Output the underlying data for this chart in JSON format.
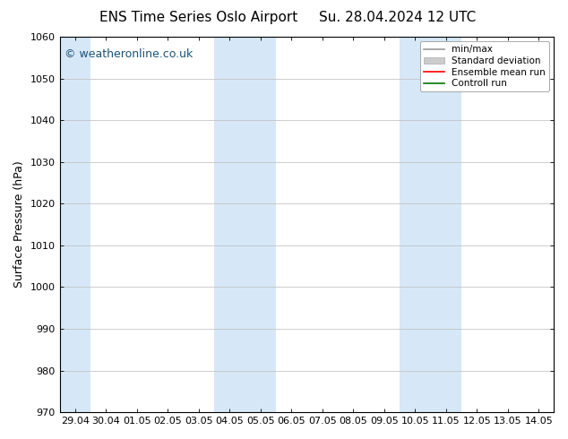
{
  "title_left": "ENS Time Series Oslo Airport",
  "title_right": "Su. 28.04.2024 12 UTC",
  "ylabel": "Surface Pressure (hPa)",
  "ylim": [
    970,
    1060
  ],
  "yticks": [
    970,
    980,
    990,
    1000,
    1010,
    1020,
    1030,
    1040,
    1050,
    1060
  ],
  "x_labels": [
    "29.04",
    "30.04",
    "01.05",
    "02.05",
    "03.05",
    "04.05",
    "05.05",
    "06.05",
    "07.05",
    "08.05",
    "09.05",
    "10.05",
    "11.05",
    "12.05",
    "13.05",
    "14.05"
  ],
  "num_cols": 15,
  "shaded_col_indices": [
    0,
    5,
    6,
    11,
    12
  ],
  "shade_color": "#d6e8f7",
  "background_color": "#ffffff",
  "watermark_text": "© weatheronline.co.uk",
  "watermark_color": "#1a5276",
  "legend_items": [
    {
      "label": "min/max",
      "color": "#999999",
      "lw": 1.2,
      "ls": "-",
      "type": "line"
    },
    {
      "label": "Standard deviation",
      "color": "#cccccc",
      "lw": 8,
      "ls": "-",
      "type": "patch"
    },
    {
      "label": "Ensemble mean run",
      "color": "#ff0000",
      "lw": 1.2,
      "ls": "-",
      "type": "line"
    },
    {
      "label": "Controll run",
      "color": "#007700",
      "lw": 1.2,
      "ls": "-",
      "type": "line"
    }
  ],
  "grid_color": "#bbbbbb",
  "spine_color": "#000000",
  "title_fontsize": 11,
  "label_fontsize": 9,
  "tick_fontsize": 8,
  "watermark_fontsize": 9,
  "legend_fontsize": 7.5
}
